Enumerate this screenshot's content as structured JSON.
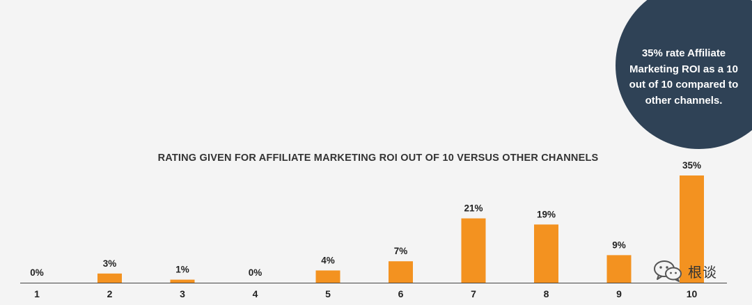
{
  "chart_data": {
    "type": "bar",
    "title": "RATING GIVEN FOR AFFILIATE MARKETING ROI OUT OF 10 VERSUS OTHER CHANNELS",
    "categories": [
      "1",
      "2",
      "3",
      "4",
      "5",
      "6",
      "7",
      "8",
      "9",
      "10"
    ],
    "values": [
      0,
      3,
      1,
      0,
      4,
      7,
      21,
      19,
      9,
      35
    ],
    "value_labels": [
      "0%",
      "3%",
      "1%",
      "0%",
      "4%",
      "7%",
      "21%",
      "19%",
      "9%",
      "35%"
    ],
    "unit": "%",
    "ylim": [
      0,
      35
    ],
    "grid": false,
    "bar_color": "#f39220",
    "axis_color": "#444444"
  },
  "callout": {
    "text": "35% rate Affiliate Marketing ROI as a 10 out of 10 compared to other channels.",
    "background": "#2f4256",
    "text_color": "#ffffff"
  },
  "watermark": {
    "icon": "wechat-icon",
    "text": "根谈"
  }
}
